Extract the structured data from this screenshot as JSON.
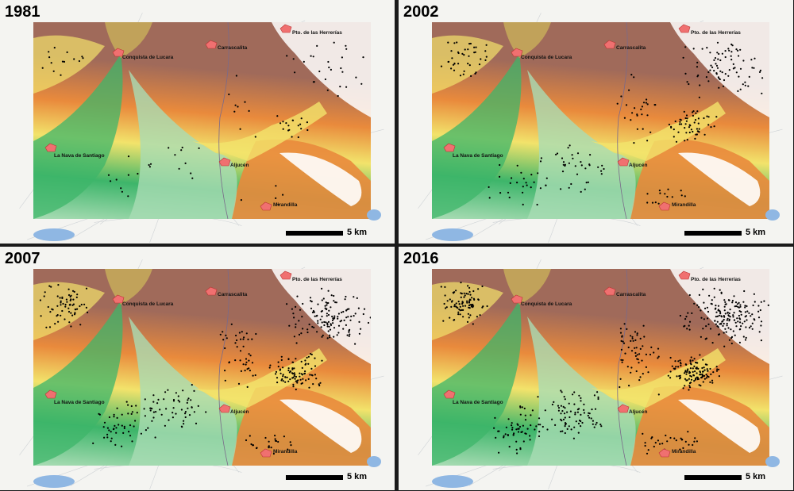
{
  "panels": [
    {
      "year": "1981",
      "dot_density": 0.15
    },
    {
      "year": "2002",
      "dot_density": 0.45
    },
    {
      "year": "2007",
      "dot_density": 0.75
    },
    {
      "year": "2016",
      "dot_density": 1.0
    }
  ],
  "towns": [
    {
      "name": "Pto. de las Herrerías"
    },
    {
      "name": "Conquista de Lucara"
    },
    {
      "name": "Carrascalita"
    },
    {
      "name": "La Nava de Santiago"
    },
    {
      "name": "Aljucén"
    },
    {
      "name": "Mirandilla"
    }
  ],
  "scale_bar": {
    "label": "5 km"
  },
  "colors": {
    "low": "#a9dcb4",
    "mid_low": "#3db56a",
    "mid": "#f2e36b",
    "mid_high": "#e98a3c",
    "high": "#a06a5a",
    "peak": "#ffffff",
    "town": "#f07070",
    "water": "#8fb7e3"
  }
}
